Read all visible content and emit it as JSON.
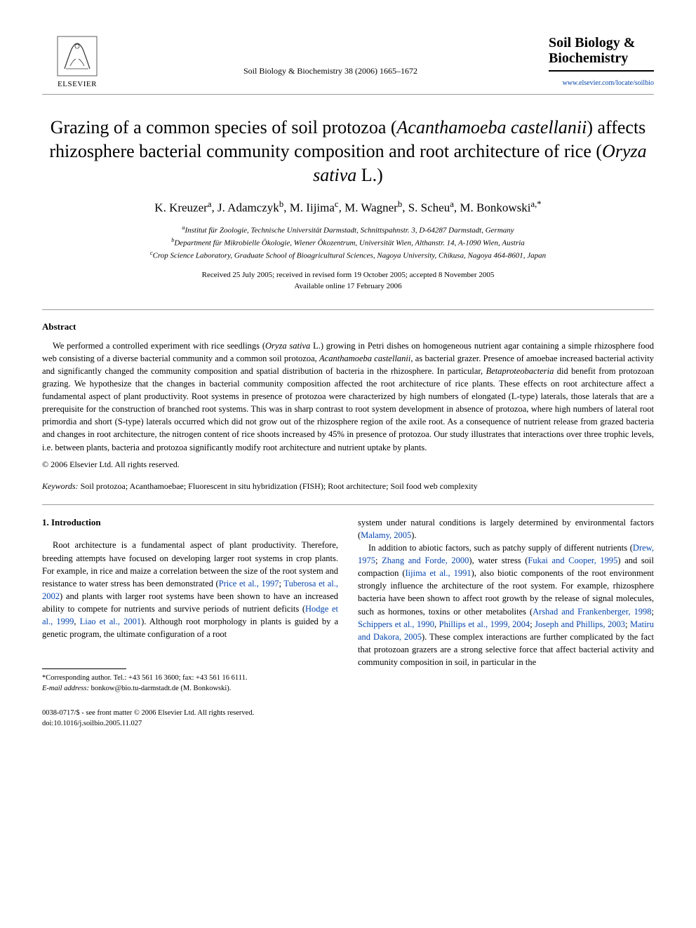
{
  "header": {
    "publisher_name": "ELSEVIER",
    "citation": "Soil Biology & Biochemistry 38 (2006) 1665–1672",
    "journal_name": "Soil Biology & Biochemistry",
    "journal_url": "www.elsevier.com/locate/soilbio"
  },
  "title_parts": {
    "p1": "Grazing of a common species of soil protozoa (",
    "i1": "Acanthamoeba castellanii",
    "p2": ") affects rhizosphere bacterial community composition and root architecture of rice (",
    "i2": "Oryza sativa",
    "p3": " L.)"
  },
  "authors_html": "K. Kreuzer<sup>a</sup>, J. Adamczyk<sup>b</sup>, M. Iijima<sup>c</sup>, M. Wagner<sup>b</sup>, S. Scheu<sup>a</sup>, M. Bonkowski<sup>a,*</sup>",
  "affiliations": {
    "a": "Institut für Zoologie, Technische Universität Darmstadt, Schnittspahnstr. 3, D-64287 Darmstadt, Germany",
    "b": "Department für Mikrobielle Ökologie, Wiener Ökozentrum, Universität Wien, Althanstr. 14, A-1090 Wien, Austria",
    "c": "Crop Science Laboratory, Graduate School of Bioagricultural Sciences, Nagoya University, Chikusa, Nagoya 464-8601, Japan"
  },
  "dates": {
    "line1": "Received 25 July 2005; received in revised form 19 October 2005; accepted 8 November 2005",
    "line2": "Available online 17 February 2006"
  },
  "abstract": {
    "heading": "Abstract",
    "text_parts": {
      "p1": "We performed a controlled experiment with rice seedlings (",
      "i1": "Oryza sativa",
      "p2": " L.) growing in Petri dishes on homogeneous nutrient agar containing a simple rhizosphere food web consisting of a diverse bacterial community and a common soil protozoa, ",
      "i2": "Acanthamoeba castellanii",
      "p3": ", as bacterial grazer. Presence of amoebae increased bacterial activity and significantly changed the community composition and spatial distribution of bacteria in the rhizosphere. In particular, ",
      "i3": "Betaproteobacteria",
      "p4": " did benefit from protozoan grazing. We hypothesize that the changes in bacterial community composition affected the root architecture of rice plants. These effects on root architecture affect a fundamental aspect of plant productivity. Root systems in presence of protozoa were characterized by high numbers of elongated (L-type) laterals, those laterals that are a prerequisite for the construction of branched root systems. This was in sharp contrast to root system development in absence of protozoa, where high numbers of lateral root primordia and short (S-type) laterals occurred which did not grow out of the rhizosphere region of the axile root. As a consequence of nutrient release from grazed bacteria and changes in root architecture, the nitrogen content of rice shoots increased by 45% in presence of protozoa. Our study illustrates that interactions over three trophic levels, i.e. between plants, bacteria and protozoa significantly modify root architecture and nutrient uptake by plants."
    },
    "copyright": "© 2006 Elsevier Ltd. All rights reserved."
  },
  "keywords": {
    "label": "Keywords:",
    "text": " Soil protozoa; Acanthamoebae; Fluorescent in situ hybridization (FISH); Root architecture; Soil food web complexity"
  },
  "intro": {
    "heading": "1. Introduction",
    "col1": {
      "p1a": "Root architecture is a fundamental aspect of plant productivity. Therefore, breeding attempts have focused on developing larger root systems in crop plants. For example, in rice and maize a correlation between the size of the root system and resistance to water stress has been demonstrated (",
      "r1": "Price et al., 1997",
      "s1": "; ",
      "r2": "Tuberosa et al., 2002",
      "p1b": ") and plants with larger root systems have been shown to have an increased ability to compete for nutrients and survive periods of nutrient deficits (",
      "r3": "Hodge et al., 1999",
      "s2": ", ",
      "r4": "Liao et al., 2001",
      "p1c": "). Although root morphology in plants is guided by a genetic program, the ultimate configuration of a root"
    },
    "col2": {
      "p1a": "system under natural conditions is largely determined by environmental factors (",
      "r1": "Malamy, 2005",
      "p1b": ").",
      "p2a": "In addition to abiotic factors, such as patchy supply of different nutrients (",
      "r2": "Drew, 1975",
      "s1": "; ",
      "r3": "Zhang and Forde, 2000",
      "p2b": "), water stress (",
      "r4": "Fukai and Cooper, 1995",
      "p2c": ") and soil compaction (",
      "r5": "Iijima et al., 1991",
      "p2d": "), also biotic components of the root environment strongly influence the architecture of the root system. For example, rhizosphere bacteria have been shown to affect root growth by the release of signal molecules, such as hormones, toxins or other metabolites (",
      "r6": "Arshad and Frankenberger, 1998",
      "s2": "; ",
      "r7": "Schippers et al., 1990",
      "s3": ", ",
      "r8": "Phillips et al., 1999, 2004",
      "s4": "; ",
      "r9": "Joseph and Phillips, 2003",
      "s5": "; ",
      "r10": "Matiru and Dakora, 2005",
      "p2e": "). These complex interactions are further complicated by the fact that protozoan grazers are a strong selective force that affect bacterial activity and community composition in soil, in particular in the"
    }
  },
  "footnote": {
    "corr": "*Corresponding author. Tel.: +43 561 16 3600; fax: +43 561 16 6111.",
    "email_label": "E-mail address:",
    "email": " bonkow@bio.tu-darmstadt.de (M. Bonkowski)."
  },
  "footer": {
    "line1": "0038-0717/$ - see front matter © 2006 Elsevier Ltd. All rights reserved.",
    "line2": "doi:10.1016/j.soilbio.2005.11.027"
  },
  "colors": {
    "link": "#0645ad",
    "text": "#000000",
    "rule": "#999999"
  }
}
